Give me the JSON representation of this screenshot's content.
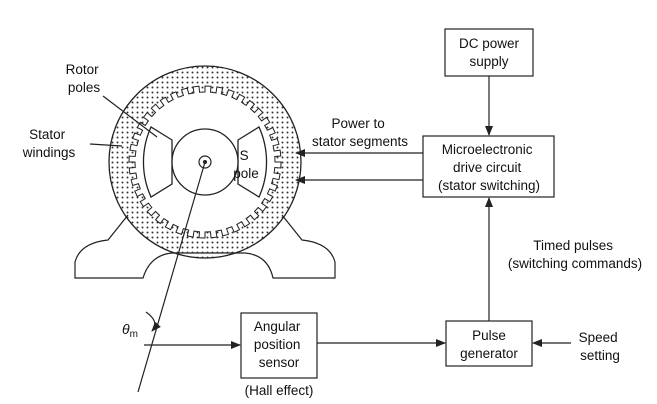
{
  "boxes": {
    "dc_power": [
      "DC power",
      "supply"
    ],
    "drive": [
      "Microelectronic",
      "drive circuit",
      "(stator switching)"
    ],
    "pulse_gen": [
      "Pulse",
      "generator"
    ],
    "sensor": [
      "Angular",
      "position",
      "sensor"
    ]
  },
  "labels": {
    "rotor_poles": [
      "Rotor",
      "poles"
    ],
    "stator_windings": [
      "Stator",
      "windings"
    ],
    "s_pole": [
      "S",
      "pole"
    ],
    "power_to_stator": [
      "Power to",
      "stator segments"
    ],
    "timed_pulses": [
      "Timed pulses",
      "(switching commands)"
    ],
    "speed_setting": [
      "Speed",
      "setting"
    ],
    "hall_effect": "(Hall effect)",
    "theta_symbol": "θ",
    "theta_subscript": "m"
  },
  "colors": {
    "line": "#222222",
    "background": "#ffffff",
    "dots": "#333333"
  }
}
